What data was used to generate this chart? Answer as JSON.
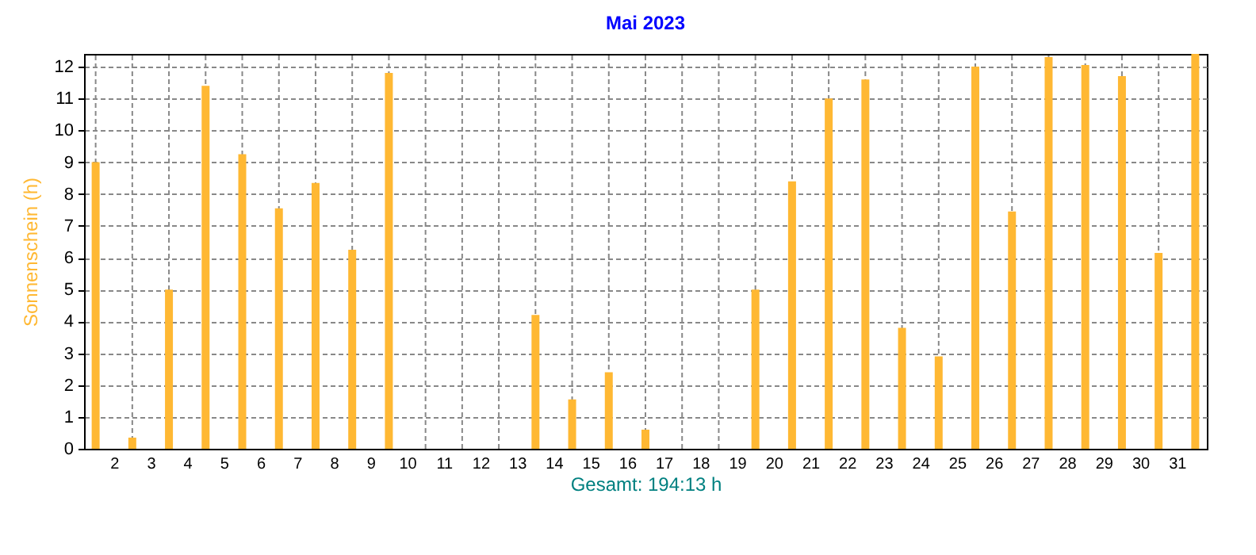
{
  "chart_data": {
    "type": "bar",
    "title": "Mai 2023",
    "xlabel": "Gesamt: 194:13 h",
    "ylabel": "Sonnenschein  (h)",
    "x": [
      1.5,
      2.5,
      3.5,
      4.5,
      5.5,
      6.5,
      7.5,
      8.5,
      9.5,
      10.5,
      11.5,
      12.5,
      13.5,
      14.5,
      15.5,
      16.5,
      17.5,
      18.5,
      19.5,
      20.5,
      21.5,
      22.5,
      23.5,
      24.5,
      25.5,
      26.5,
      27.5,
      28.5,
      29.5,
      30.5,
      31.5
    ],
    "values": [
      9.0,
      0.35,
      5.0,
      11.4,
      9.25,
      7.55,
      8.35,
      6.25,
      11.8,
      0,
      0,
      0,
      4.2,
      1.55,
      2.4,
      0.6,
      0,
      0,
      5.0,
      8.4,
      11.0,
      11.6,
      3.8,
      2.9,
      12.0,
      7.45,
      12.3,
      12.05,
      11.7,
      6.15,
      12.4
    ],
    "color": "#ffb833",
    "xlim": [
      1.4,
      31.6
    ],
    "xticks": [
      2,
      3,
      4,
      5,
      6,
      7,
      8,
      9,
      10,
      11,
      12,
      13,
      14,
      15,
      16,
      17,
      18,
      19,
      20,
      21,
      22,
      23,
      24,
      25,
      26,
      27,
      28,
      29,
      30,
      31
    ],
    "ylim": [
      0,
      12.4
    ],
    "yticks": [
      0,
      1,
      2,
      3,
      4,
      5,
      6,
      7,
      8,
      9,
      10,
      11,
      12
    ],
    "grid": true
  }
}
